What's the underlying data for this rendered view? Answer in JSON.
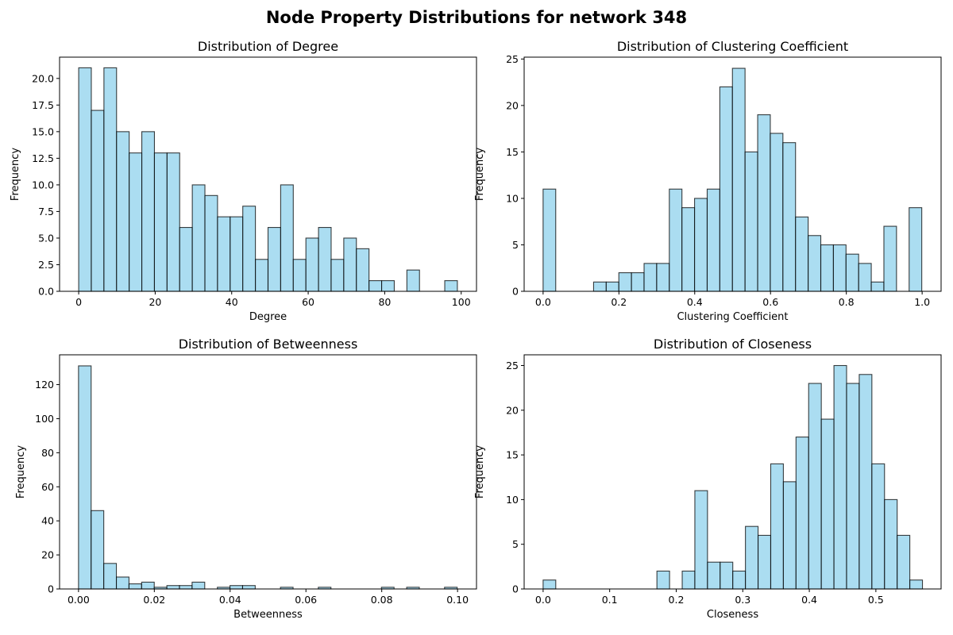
{
  "figure": {
    "title": "Node Property Distributions for network 348"
  },
  "style": {
    "bar_fill": "#87ceeb",
    "bar_opacity": 0.7,
    "bar_edge": "#000000"
  },
  "chart_data": [
    {
      "type": "bar",
      "title": "Distribution of Degree",
      "xlabel": "Degree",
      "ylabel": "Frequency",
      "xlim": [
        -5,
        104
      ],
      "ylim": [
        0,
        22
      ],
      "bin_start": 0,
      "bin_width": 3.3,
      "values": [
        21,
        17,
        21,
        15,
        13,
        15,
        13,
        13,
        6,
        10,
        9,
        7,
        7,
        8,
        3,
        6,
        10,
        3,
        5,
        6,
        3,
        5,
        4,
        1,
        1,
        0,
        2,
        0,
        0,
        1
      ],
      "xticks": [
        0,
        20,
        40,
        60,
        80,
        100
      ],
      "xtick_labels": [
        "0",
        "20",
        "40",
        "60",
        "80",
        "100"
      ],
      "yticks": [
        0,
        2.5,
        5,
        7.5,
        10,
        12.5,
        15,
        17.5,
        20
      ],
      "ytick_labels": [
        "0.0",
        "2.5",
        "5.0",
        "7.5",
        "10.0",
        "12.5",
        "15.0",
        "17.5",
        "20.0"
      ]
    },
    {
      "type": "bar",
      "title": "Distribution of Clustering Coefficient",
      "xlabel": "Clustering Coefficient",
      "ylabel": "Frequency",
      "xlim": [
        -0.05,
        1.05
      ],
      "ylim": [
        0,
        25.2
      ],
      "bin_start": 0,
      "bin_width": 0.0333,
      "values": [
        11,
        0,
        0,
        0,
        1,
        1,
        2,
        2,
        3,
        3,
        11,
        9,
        10,
        11,
        22,
        24,
        15,
        19,
        17,
        16,
        8,
        6,
        5,
        5,
        4,
        3,
        1,
        7,
        0,
        9
      ],
      "xticks": [
        0,
        0.2,
        0.4,
        0.6,
        0.8,
        1.0
      ],
      "xtick_labels": [
        "0.0",
        "0.2",
        "0.4",
        "0.6",
        "0.8",
        "1.0"
      ],
      "yticks": [
        0,
        5,
        10,
        15,
        20,
        25
      ],
      "ytick_labels": [
        "0",
        "5",
        "10",
        "15",
        "20",
        "25"
      ]
    },
    {
      "type": "bar",
      "title": "Distribution of Betweenness",
      "xlabel": "Betweenness",
      "ylabel": "Frequency",
      "xlim": [
        -0.005,
        0.105
      ],
      "ylim": [
        0,
        137.5
      ],
      "bin_start": 0,
      "bin_width": 0.00333,
      "values": [
        131,
        46,
        15,
        7,
        3,
        4,
        1,
        2,
        2,
        4,
        0,
        1,
        2,
        2,
        0,
        0,
        1,
        0,
        0,
        1,
        0,
        0,
        0,
        0,
        1,
        0,
        1,
        0,
        0,
        1
      ],
      "xticks": [
        0,
        0.02,
        0.04,
        0.06,
        0.08,
        0.1
      ],
      "xtick_labels": [
        "0.00",
        "0.02",
        "0.04",
        "0.06",
        "0.08",
        "0.10"
      ],
      "yticks": [
        0,
        20,
        40,
        60,
        80,
        100,
        120
      ],
      "ytick_labels": [
        "0",
        "20",
        "40",
        "60",
        "80",
        "100",
        "120"
      ]
    },
    {
      "type": "bar",
      "title": "Distribution of Closeness",
      "xlabel": "Closeness",
      "ylabel": "Frequency",
      "xlim": [
        -0.0285,
        0.598
      ],
      "ylim": [
        0,
        26.2
      ],
      "bin_start": 0,
      "bin_width": 0.019,
      "values": [
        1,
        0,
        0,
        0,
        0,
        0,
        0,
        0,
        0,
        2,
        0,
        2,
        11,
        3,
        3,
        2,
        7,
        6,
        14,
        12,
        17,
        23,
        19,
        25,
        23,
        24,
        14,
        10,
        6,
        1
      ],
      "xticks": [
        0,
        0.1,
        0.2,
        0.3,
        0.4,
        0.5
      ],
      "xtick_labels": [
        "0.0",
        "0.1",
        "0.2",
        "0.3",
        "0.4",
        "0.5"
      ],
      "yticks": [
        0,
        5,
        10,
        15,
        20,
        25
      ],
      "ytick_labels": [
        "0",
        "5",
        "10",
        "15",
        "20",
        "25"
      ]
    }
  ]
}
